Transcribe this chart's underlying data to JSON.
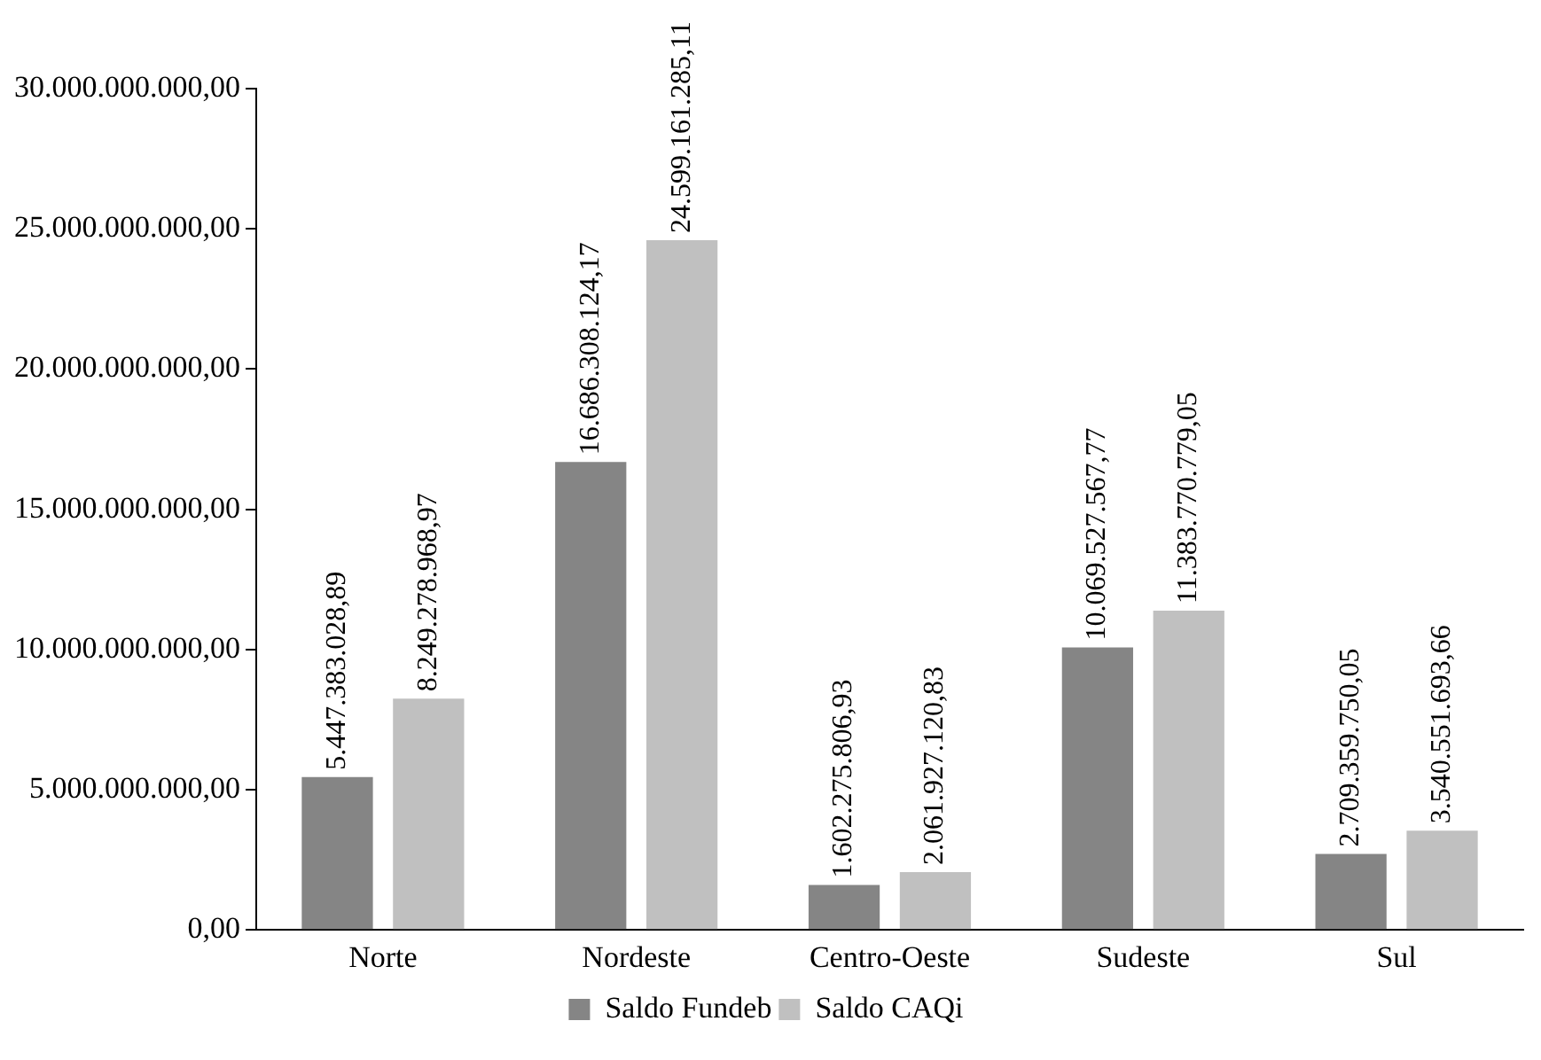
{
  "chart_data": {
    "type": "bar",
    "categories": [
      "Norte",
      "Nordeste",
      "Centro-Oeste",
      "Sudeste",
      "Sul"
    ],
    "series": [
      {
        "name": "Saldo Fundeb",
        "color": "#858585",
        "values": [
          5447383028.89,
          16686308124.17,
          1602275806.93,
          10069527567.77,
          2709359750.05
        ],
        "value_labels": [
          "5.447.383.028,89",
          "16.686.308.124,17",
          "1.602.275.806,93",
          "10.069.527.567,77",
          "2.709.359.750,05"
        ]
      },
      {
        "name": "Saldo CAQi",
        "color": "#c0c0c0",
        "values": [
          8249278968.97,
          24599161285.11,
          2061927120.83,
          11383770779.05,
          3540551693.66
        ],
        "value_labels": [
          "8.249.278.968,97",
          "24.599.161.285,11",
          "2.061.927.120,83",
          "11.383.770.779,05",
          "3.540.551.693,66"
        ]
      }
    ],
    "ylim": [
      0,
      30000000000
    ],
    "yticks": [
      {
        "value": 0,
        "label": "0,00"
      },
      {
        "value": 5000000000,
        "label": "5.000.000.000,00"
      },
      {
        "value": 10000000000,
        "label": "10.000.000.000,00"
      },
      {
        "value": 15000000000,
        "label": "15.000.000.000,00"
      },
      {
        "value": 20000000000,
        "label": "20.000.000.000,00"
      },
      {
        "value": 25000000000,
        "label": "25.000.000.000,00"
      },
      {
        "value": 30000000000,
        "label": "30.000.000.000,00"
      }
    ],
    "grid": false,
    "legend": "bottom"
  }
}
